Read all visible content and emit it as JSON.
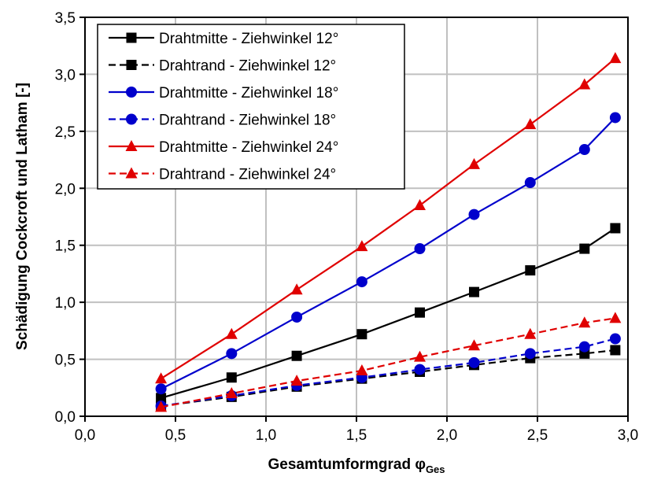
{
  "chart_data": {
    "type": "line",
    "xlabel": "Gesamtumformgrad φ",
    "xlabel_sub": "Ges",
    "ylabel": "Schädigung Cockcroft und Latham [-]",
    "xlim": [
      0,
      3.0
    ],
    "ylim": [
      0,
      3.5
    ],
    "xticks": [
      "0,0",
      "0,5",
      "1,0",
      "1,5",
      "2,0",
      "2,5",
      "3,0"
    ],
    "yticks": [
      "0,0",
      "0,5",
      "1,0",
      "1,5",
      "2,0",
      "2,5",
      "3,0",
      "3,5"
    ],
    "grid": true,
    "legend_position": "top-left",
    "x": [
      0.42,
      0.81,
      1.17,
      1.53,
      1.85,
      2.15,
      2.46,
      2.76,
      2.93
    ],
    "series": [
      {
        "name": "Drahtmitte - Ziehwinkel 12°",
        "color": "#000000",
        "dashed": false,
        "marker": "square",
        "values": [
          0.16,
          0.34,
          0.53,
          0.72,
          0.91,
          1.09,
          1.28,
          1.47,
          1.65
        ]
      },
      {
        "name": "Drahtrand - Ziehwinkel 12°",
        "color": "#000000",
        "dashed": true,
        "marker": "square",
        "values": [
          0.09,
          0.17,
          0.26,
          0.33,
          0.39,
          0.45,
          0.51,
          0.55,
          0.58
        ]
      },
      {
        "name": "Drahtmitte - Ziehwinkel 18°",
        "color": "#0000cc",
        "dashed": false,
        "marker": "circle",
        "values": [
          0.24,
          0.55,
          0.87,
          1.18,
          1.47,
          1.77,
          2.05,
          2.34,
          2.62
        ]
      },
      {
        "name": "Drahtrand - Ziehwinkel 18°",
        "color": "#0000cc",
        "dashed": true,
        "marker": "circle",
        "values": [
          0.09,
          0.18,
          0.27,
          0.34,
          0.41,
          0.47,
          0.55,
          0.61,
          0.68
        ]
      },
      {
        "name": "Drahtmitte - Ziehwinkel 24°",
        "color": "#e00000",
        "dashed": false,
        "marker": "triangle",
        "values": [
          0.33,
          0.72,
          1.11,
          1.49,
          1.85,
          2.21,
          2.56,
          2.91,
          3.14
        ]
      },
      {
        "name": "Drahtrand - Ziehwinkel 24°",
        "color": "#e00000",
        "dashed": true,
        "marker": "triangle",
        "values": [
          0.08,
          0.2,
          0.31,
          0.4,
          0.52,
          0.62,
          0.72,
          0.82,
          0.86
        ]
      }
    ]
  }
}
